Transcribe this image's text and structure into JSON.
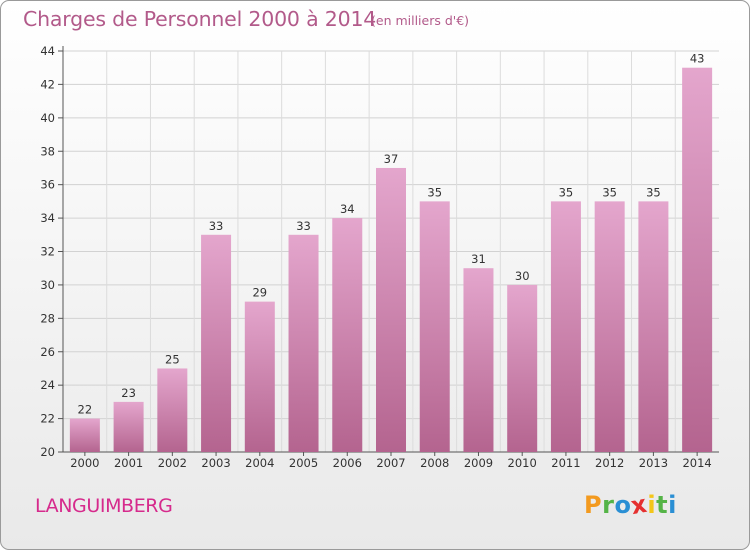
{
  "header": {
    "title": "Charges de Personnel 2000 à 2014",
    "subtitle": "(en milliers d'€)"
  },
  "footer": {
    "commune": "LANGUIMBERG",
    "logo_text": "Proxiti",
    "logo_letters": [
      "P",
      "r",
      "o",
      "x",
      "i",
      "t",
      "i"
    ],
    "logo_colors": [
      "#f39a1f",
      "#55b447",
      "#2a8fd4",
      "#e5302f",
      "#f4c619",
      "#55b447",
      "#2a8fd4"
    ]
  },
  "colors": {
    "title": "#b25a8a",
    "commune": "#d62a8c",
    "bar_top": "#e4a6cd",
    "bar_bottom": "#b4648f"
  },
  "chart_data": {
    "type": "bar",
    "categories": [
      "2000",
      "2001",
      "2002",
      "2003",
      "2004",
      "2005",
      "2006",
      "2007",
      "2008",
      "2009",
      "2010",
      "2011",
      "2012",
      "2013",
      "2014"
    ],
    "values": [
      22,
      23,
      25,
      33,
      29,
      33,
      34,
      37,
      35,
      31,
      30,
      35,
      35,
      35,
      43
    ],
    "ylim": [
      20,
      44
    ],
    "yticks": [
      20,
      22,
      24,
      26,
      28,
      30,
      32,
      34,
      36,
      38,
      40,
      42,
      44
    ],
    "grid": true,
    "data_labels": true
  }
}
